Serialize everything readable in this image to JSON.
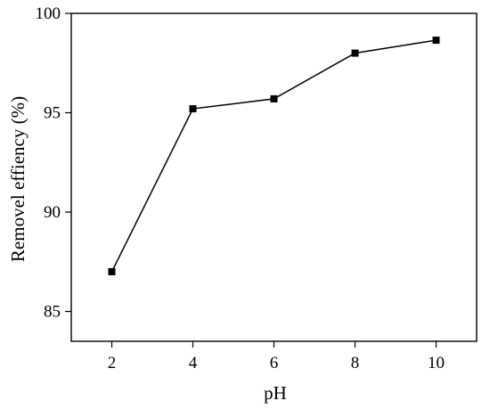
{
  "chart_data": {
    "type": "line",
    "title": "",
    "xlabel": "pH",
    "ylabel": "Removel effiency (%)",
    "xlim": [
      1,
      11
    ],
    "ylim": [
      83.5,
      100
    ],
    "x_ticks": [
      2,
      4,
      6,
      8,
      10
    ],
    "y_ticks": [
      85,
      90,
      95,
      100
    ],
    "grid": false,
    "legend": "none",
    "series": [
      {
        "x": [
          2,
          4,
          6,
          8,
          10
        ],
        "y": [
          87.0,
          95.2,
          95.7,
          98.0,
          98.65
        ],
        "marker": "square",
        "color": "#000000"
      }
    ]
  }
}
